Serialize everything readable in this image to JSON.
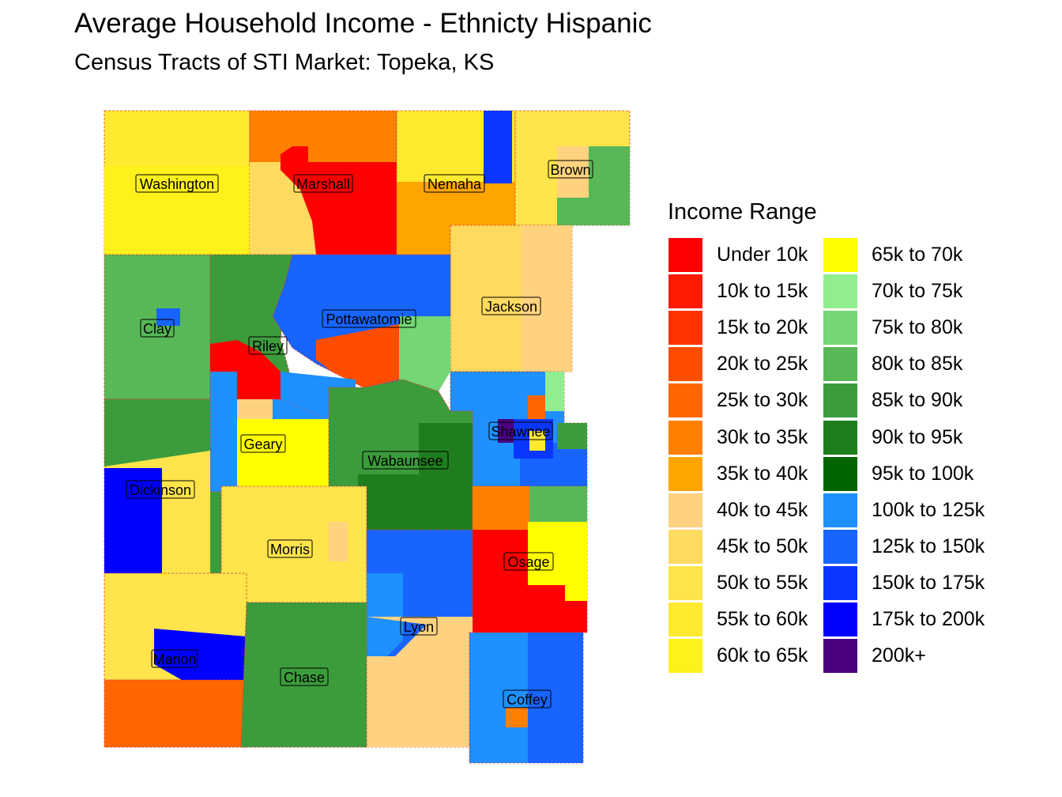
{
  "title": "Average Household Income - Ethnicty Hispanic",
  "subtitle": "Census Tracts of STI Market: Topeka, KS",
  "legend": {
    "title": "Income Range",
    "items": [
      {
        "label": "Under 10k",
        "color": "#FF0000"
      },
      {
        "label": "10k to 15k",
        "color": "#FF1A00"
      },
      {
        "label": "15k to 20k",
        "color": "#FF3300"
      },
      {
        "label": "20k to 25k",
        "color": "#FF4D00"
      },
      {
        "label": "25k to 30k",
        "color": "#FF6600"
      },
      {
        "label": "30k to 35k",
        "color": "#FF8000"
      },
      {
        "label": "35k to 40k",
        "color": "#FFA500"
      },
      {
        "label": "40k to 45k",
        "color": "#FFD27F"
      },
      {
        "label": "45k to 50k",
        "color": "#FFDA60"
      },
      {
        "label": "50k to 55k",
        "color": "#FFE44C"
      },
      {
        "label": "55k to 60k",
        "color": "#FFEA30"
      },
      {
        "label": "60k to 65k",
        "color": "#FFF11A"
      },
      {
        "label": "65k to 70k",
        "color": "#FFFF00"
      },
      {
        "label": "70k to 75k",
        "color": "#90EE90"
      },
      {
        "label": "75k to 80k",
        "color": "#74D674"
      },
      {
        "label": "80k to 85k",
        "color": "#58B858"
      },
      {
        "label": "85k to 90k",
        "color": "#3C9C3C"
      },
      {
        "label": "90k to 95k",
        "color": "#1E7E1E"
      },
      {
        "label": "95k to 100k",
        "color": "#006400"
      },
      {
        "label": "100k to 125k",
        "color": "#1E90FF"
      },
      {
        "label": "125k to 150k",
        "color": "#1764FF"
      },
      {
        "label": "150k to 175k",
        "color": "#0A37FF"
      },
      {
        "label": "175k to 200k",
        "color": "#0000FF"
      },
      {
        "label": "200k+",
        "color": "#4B0082"
      }
    ]
  },
  "counties": [
    {
      "name": "Washington"
    },
    {
      "name": "Marshall"
    },
    {
      "name": "Nemaha"
    },
    {
      "name": "Brown"
    },
    {
      "name": "Clay"
    },
    {
      "name": "Riley"
    },
    {
      "name": "Pottawatomie"
    },
    {
      "name": "Jackson"
    },
    {
      "name": "Shawnee"
    },
    {
      "name": "Geary"
    },
    {
      "name": "Wabaunsee"
    },
    {
      "name": "Dickinson"
    },
    {
      "name": "Morris"
    },
    {
      "name": "Osage"
    },
    {
      "name": "Lyon"
    },
    {
      "name": "Marion"
    },
    {
      "name": "Chase"
    },
    {
      "name": "Coffey"
    }
  ]
}
